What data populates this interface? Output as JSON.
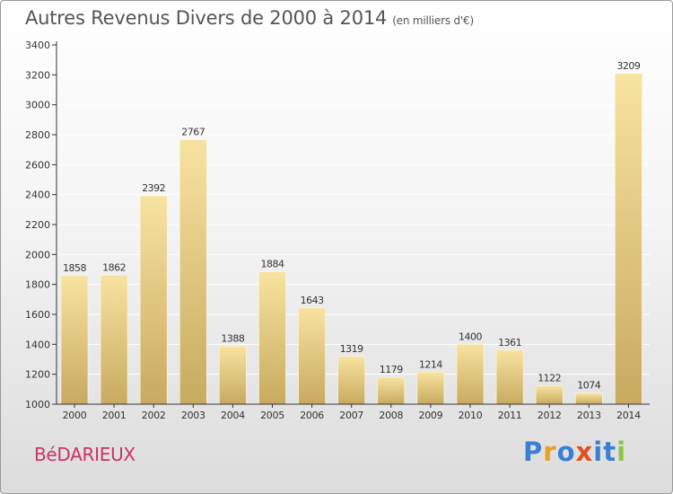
{
  "header": {
    "title": "Autres Revenus Divers de 2000 à 2014",
    "unit": "(en milliers d'€)"
  },
  "footer": {
    "town": "BéDARIEUX",
    "logo_text": "Proxiti",
    "logo_colors": [
      "#3b7fd4",
      "#e8a020",
      "#3b7fd4",
      "#e05020",
      "#3b7fd4",
      "#3b7fd4",
      "#8cc63f"
    ]
  },
  "colors": {
    "bar_light": "#f7e3a0",
    "bar_dark": "#c8aa60",
    "axis": "#333333",
    "grid": "#ffffff"
  },
  "chart_data": {
    "type": "bar",
    "categories": [
      "2000",
      "2001",
      "2002",
      "2003",
      "2004",
      "2005",
      "2006",
      "2007",
      "2008",
      "2009",
      "2010",
      "2011",
      "2012",
      "2013",
      "2014"
    ],
    "values": [
      1858,
      1862,
      2392,
      2767,
      1388,
      1884,
      1643,
      1319,
      1179,
      1214,
      1400,
      1361,
      1122,
      1074,
      3209
    ],
    "ylim": [
      1000,
      3400
    ],
    "yticks": [
      1000,
      1200,
      1400,
      1600,
      1800,
      2000,
      2200,
      2400,
      2600,
      2800,
      3000,
      3200,
      3400
    ],
    "grid": true,
    "legend": "none"
  }
}
